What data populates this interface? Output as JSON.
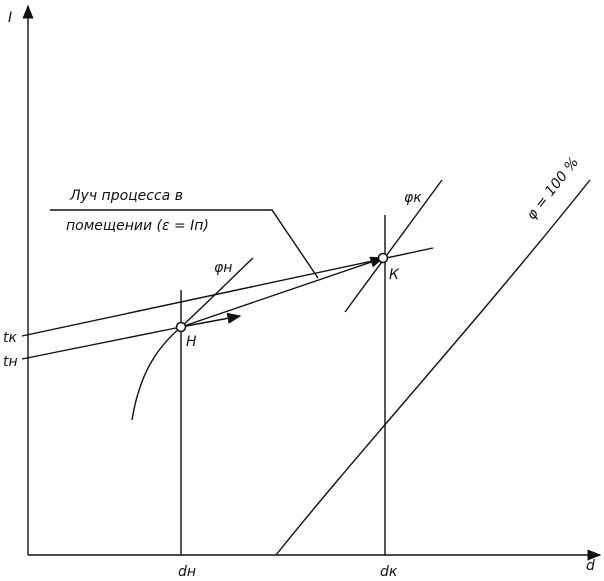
{
  "axes": {
    "y_label": "I",
    "x_label": "d"
  },
  "annotation": {
    "line1": "Луч процесса в",
    "line2": "помещении (ε = Iп)"
  },
  "curves": {
    "phi_h": "φн",
    "phi_k": "φк",
    "phi_100": "φ = 100 %"
  },
  "points": {
    "start": "Н",
    "end": "К"
  },
  "left_labels": [
    "tк",
    "tн"
  ],
  "bottom_labels": [
    "dн",
    "dк"
  ]
}
